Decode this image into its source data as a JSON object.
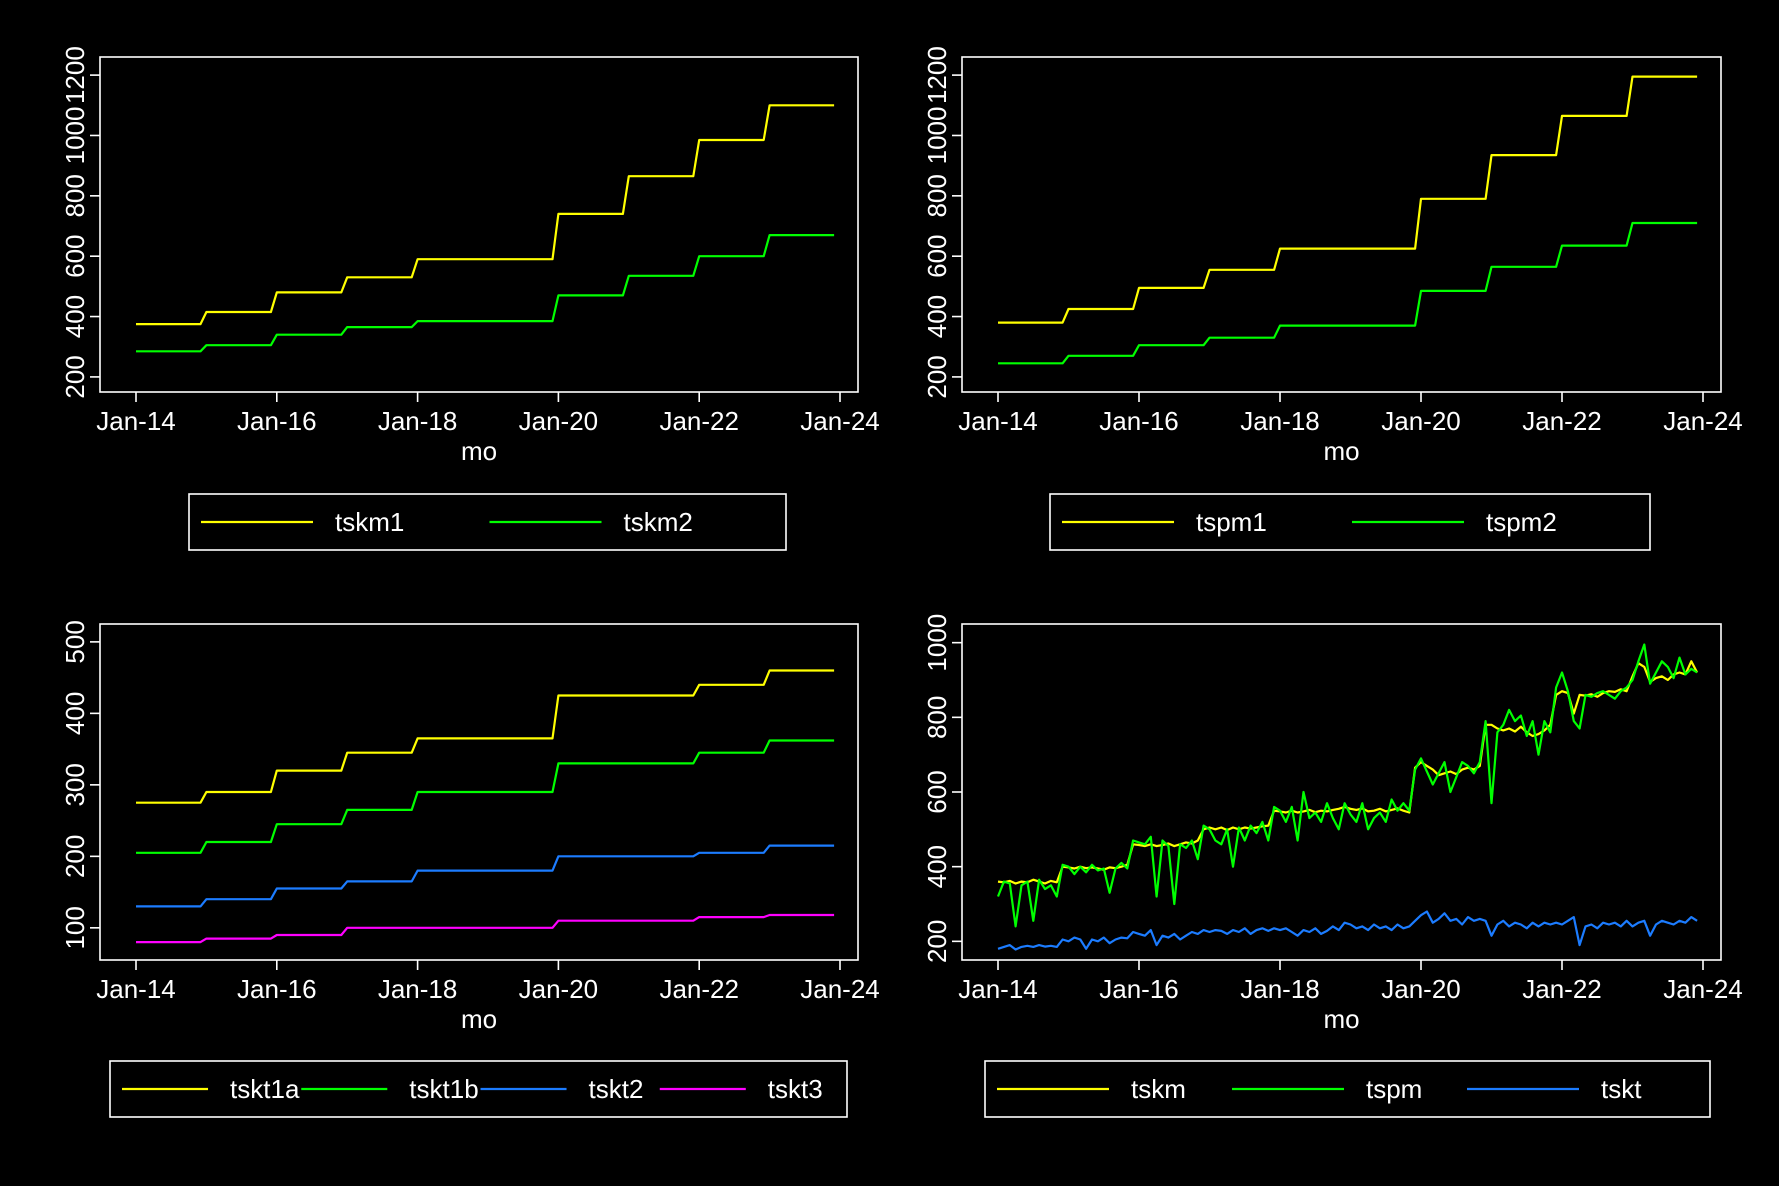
{
  "colors": {
    "background": "#000000",
    "axes": "#ffffff",
    "text": "#ffffff"
  },
  "chart_data": [
    {
      "type": "line",
      "xlabel": "mo",
      "ylabel": "",
      "x_range": [
        "2014-01",
        "2023-12"
      ],
      "xticks": [
        {
          "date": "2014-01",
          "label": "Jan-14"
        },
        {
          "date": "2016-01",
          "label": "Jan-16"
        },
        {
          "date": "2018-01",
          "label": "Jan-18"
        },
        {
          "date": "2020-01",
          "label": "Jan-20"
        },
        {
          "date": "2022-01",
          "label": "Jan-22"
        },
        {
          "date": "2024-01",
          "label": "Jan-24"
        }
      ],
      "ylim": [
        150,
        1260
      ],
      "yticks": [
        200,
        400,
        600,
        800,
        1000,
        1200
      ],
      "yticks_rotated": true,
      "grid": false,
      "legend_position": "bottom",
      "series": [
        {
          "name": "tskm1",
          "color": "#ffff00",
          "style": "annual-step",
          "values": [
            375,
            415,
            480,
            530,
            590,
            590,
            740,
            865,
            985,
            1100
          ]
        },
        {
          "name": "tskm2",
          "color": "#00ff00",
          "style": "annual-step",
          "values": [
            285,
            305,
            340,
            365,
            385,
            385,
            470,
            535,
            600,
            670
          ]
        }
      ]
    },
    {
      "type": "line",
      "xlabel": "mo",
      "ylabel": "",
      "x_range": [
        "2014-01",
        "2023-12"
      ],
      "xticks": [
        {
          "date": "2014-01",
          "label": "Jan-14"
        },
        {
          "date": "2016-01",
          "label": "Jan-16"
        },
        {
          "date": "2018-01",
          "label": "Jan-18"
        },
        {
          "date": "2020-01",
          "label": "Jan-20"
        },
        {
          "date": "2022-01",
          "label": "Jan-22"
        },
        {
          "date": "2024-01",
          "label": "Jan-24"
        }
      ],
      "ylim": [
        150,
        1260
      ],
      "yticks": [
        200,
        400,
        600,
        800,
        1000,
        1200
      ],
      "yticks_rotated": true,
      "grid": false,
      "legend_position": "bottom",
      "series": [
        {
          "name": "tspm1",
          "color": "#ffff00",
          "style": "annual-step",
          "values": [
            380,
            425,
            495,
            555,
            625,
            625,
            790,
            935,
            1065,
            1195
          ]
        },
        {
          "name": "tspm2",
          "color": "#00ff00",
          "style": "annual-step",
          "values": [
            245,
            270,
            305,
            330,
            370,
            370,
            485,
            565,
            635,
            710
          ]
        }
      ]
    },
    {
      "type": "line",
      "xlabel": "mo",
      "ylabel": "",
      "x_range": [
        "2014-01",
        "2023-12"
      ],
      "xticks": [
        {
          "date": "2014-01",
          "label": "Jan-14"
        },
        {
          "date": "2016-01",
          "label": "Jan-16"
        },
        {
          "date": "2018-01",
          "label": "Jan-18"
        },
        {
          "date": "2020-01",
          "label": "Jan-20"
        },
        {
          "date": "2022-01",
          "label": "Jan-22"
        },
        {
          "date": "2024-01",
          "label": "Jan-24"
        }
      ],
      "ylim": [
        55,
        525
      ],
      "yticks": [
        100,
        200,
        300,
        400,
        500
      ],
      "yticks_rotated": true,
      "grid": false,
      "legend_position": "bottom",
      "series": [
        {
          "name": "tskt1a",
          "color": "#ffff00",
          "style": "annual-step",
          "values": [
            275,
            290,
            320,
            345,
            365,
            365,
            425,
            425,
            440,
            460
          ]
        },
        {
          "name": "tskt1b",
          "color": "#00ff00",
          "style": "annual-step",
          "values": [
            205,
            220,
            245,
            265,
            290,
            290,
            330,
            330,
            345,
            362
          ]
        },
        {
          "name": "tskt2",
          "color": "#1c7cff",
          "style": "annual-step",
          "values": [
            130,
            140,
            155,
            165,
            180,
            180,
            200,
            200,
            205,
            215
          ]
        },
        {
          "name": "tskt3",
          "color": "#ff00ff",
          "style": "annual-step",
          "values": [
            80,
            85,
            90,
            100,
            100,
            100,
            110,
            110,
            115,
            118
          ]
        }
      ]
    },
    {
      "type": "line",
      "xlabel": "mo",
      "ylabel": "",
      "x_range": [
        "2014-01",
        "2023-12"
      ],
      "xticks": [
        {
          "date": "2014-01",
          "label": "Jan-14"
        },
        {
          "date": "2016-01",
          "label": "Jan-16"
        },
        {
          "date": "2018-01",
          "label": "Jan-18"
        },
        {
          "date": "2020-01",
          "label": "Jan-20"
        },
        {
          "date": "2022-01",
          "label": "Jan-22"
        },
        {
          "date": "2024-01",
          "label": "Jan-24"
        }
      ],
      "ylim": [
        150,
        1050
      ],
      "yticks": [
        200,
        400,
        600,
        800,
        1000
      ],
      "yticks_rotated": true,
      "grid": false,
      "legend_position": "bottom",
      "series": [
        {
          "name": "tskm",
          "color": "#ffff00",
          "style": "monthly",
          "values": [
            360,
            358,
            362,
            355,
            360,
            358,
            365,
            360,
            355,
            362,
            358,
            400,
            398,
            395,
            400,
            396,
            398,
            395,
            392,
            398,
            396,
            400,
            405,
            460,
            458,
            455,
            460,
            455,
            458,
            462,
            455,
            460,
            465,
            462,
            470,
            500,
            505,
            500,
            505,
            498,
            505,
            500,
            505,
            502,
            505,
            508,
            510,
            550,
            548,
            545,
            550,
            545,
            548,
            552,
            546,
            550,
            548,
            552,
            555,
            560,
            555,
            552,
            556,
            548,
            550,
            555,
            548,
            552,
            556,
            550,
            545,
            665,
            680,
            670,
            660,
            645,
            650,
            655,
            648,
            660,
            665,
            660,
            670,
            780,
            780,
            770,
            765,
            770,
            762,
            775,
            760,
            750,
            755,
            765,
            780,
            860,
            870,
            865,
            810,
            860,
            858,
            862,
            855,
            865,
            870,
            868,
            875,
            870,
            910,
            945,
            935,
            895,
            905,
            910,
            900,
            915,
            920,
            915,
            950,
            920
          ]
        },
        {
          "name": "tspm",
          "color": "#00ff00",
          "style": "monthly",
          "values": [
            320,
            360,
            355,
            240,
            350,
            360,
            255,
            365,
            340,
            350,
            320,
            405,
            400,
            380,
            400,
            385,
            405,
            390,
            395,
            330,
            395,
            410,
            395,
            470,
            465,
            460,
            480,
            320,
            470,
            455,
            300,
            460,
            450,
            470,
            420,
            510,
            500,
            470,
            460,
            500,
            400,
            505,
            470,
            510,
            490,
            520,
            470,
            560,
            550,
            520,
            560,
            470,
            600,
            530,
            545,
            520,
            570,
            530,
            500,
            570,
            540,
            520,
            570,
            500,
            530,
            545,
            520,
            580,
            550,
            570,
            550,
            660,
            690,
            655,
            620,
            650,
            680,
            600,
            640,
            680,
            670,
            650,
            680,
            790,
            570,
            760,
            780,
            820,
            790,
            805,
            750,
            790,
            700,
            790,
            760,
            880,
            920,
            870,
            790,
            770,
            860,
            855,
            865,
            870,
            860,
            850,
            870,
            880,
            900,
            950,
            995,
            890,
            920,
            950,
            935,
            905,
            960,
            915,
            930,
            920
          ]
        },
        {
          "name": "tskt",
          "color": "#1c7cff",
          "style": "monthly",
          "values": [
            180,
            185,
            190,
            178,
            185,
            188,
            185,
            190,
            186,
            188,
            185,
            205,
            200,
            210,
            205,
            180,
            205,
            200,
            210,
            195,
            205,
            210,
            208,
            225,
            220,
            215,
            230,
            190,
            215,
            210,
            220,
            205,
            215,
            225,
            220,
            230,
            225,
            230,
            228,
            220,
            230,
            225,
            235,
            220,
            230,
            235,
            228,
            235,
            230,
            235,
            225,
            215,
            230,
            225,
            235,
            220,
            228,
            240,
            230,
            250,
            245,
            235,
            240,
            230,
            245,
            235,
            240,
            230,
            245,
            235,
            240,
            255,
            270,
            280,
            250,
            260,
            275,
            255,
            260,
            245,
            265,
            255,
            260,
            255,
            215,
            245,
            255,
            240,
            250,
            245,
            235,
            250,
            240,
            250,
            245,
            250,
            245,
            255,
            265,
            190,
            240,
            245,
            235,
            250,
            245,
            250,
            240,
            255,
            240,
            250,
            255,
            215,
            245,
            255,
            250,
            245,
            255,
            250,
            265,
            255
          ]
        }
      ]
    }
  ]
}
